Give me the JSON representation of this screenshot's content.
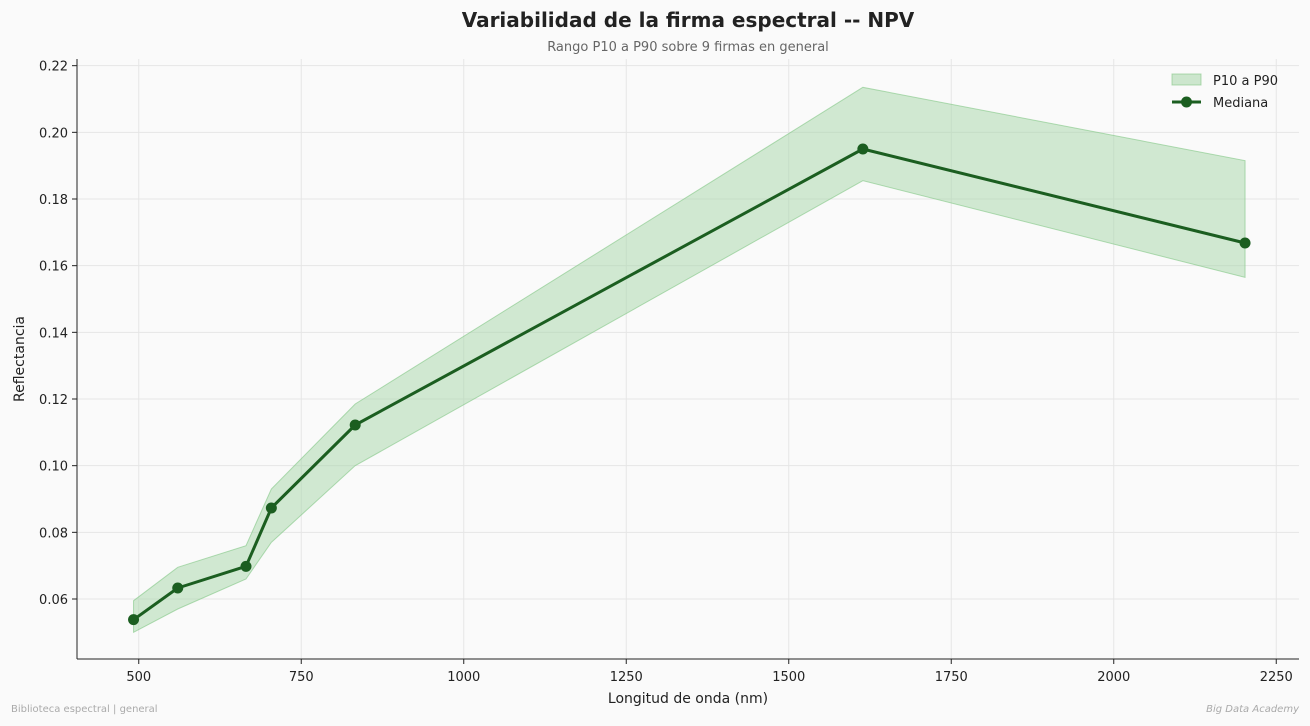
{
  "title": "Variabilidad de la firma espectral -- NPV",
  "subtitle": "Rango P10 a P90 sobre 9 firmas en general",
  "footer_left": "Biblioteca espectral | general",
  "footer_right": "Big Data Academy",
  "colors": {
    "median_line": "#1b5e20",
    "band_fill": "#a5d6a7",
    "band_edge": "#81c784",
    "grid": "#e6e6e6",
    "axis": "#222222"
  },
  "chart_data": {
    "type": "line",
    "title": "Variabilidad de la firma espectral -- NPV",
    "subtitle": "Rango P10 a P90 sobre 9 firmas en general",
    "xlabel": "Longitud de onda (nm)",
    "ylabel": "Reflectancia",
    "xlim": [
      405,
      2285
    ],
    "ylim": [
      0.042,
      0.222
    ],
    "grid": true,
    "legend_position": "top-right",
    "x_ticks": [
      500,
      750,
      1000,
      1250,
      1500,
      1750,
      2000,
      2250
    ],
    "x_tick_labels": [
      "500",
      "750",
      "1000",
      "1250",
      "1500",
      "1750",
      "2000",
      "2250"
    ],
    "y_ticks": [
      0.06,
      0.08,
      0.1,
      0.12,
      0.14,
      0.16,
      0.18,
      0.2,
      0.22
    ],
    "y_tick_labels": [
      "0.06",
      "0.08",
      "0.10",
      "0.12",
      "0.14",
      "0.16",
      "0.18",
      "0.20",
      "0.22"
    ],
    "x": [
      492,
      560,
      665,
      704,
      833,
      1614,
      2202
    ],
    "series": [
      {
        "name": "P10 a P90",
        "kind": "band",
        "lower": [
          0.05,
          0.057,
          0.066,
          0.077,
          0.1,
          0.1855,
          0.1565
        ],
        "upper": [
          0.0595,
          0.0695,
          0.076,
          0.093,
          0.1185,
          0.2135,
          0.1915
        ]
      },
      {
        "name": "Mediana",
        "kind": "line",
        "values": [
          0.0538,
          0.0633,
          0.0698,
          0.0873,
          0.1122,
          0.195,
          0.1668
        ]
      }
    ]
  }
}
